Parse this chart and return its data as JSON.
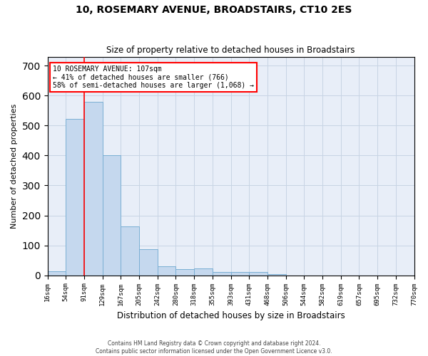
{
  "title": "10, ROSEMARY AVENUE, BROADSTAIRS, CT10 2ES",
  "subtitle": "Size of property relative to detached houses in Broadstairs",
  "xlabel": "Distribution of detached houses by size in Broadstairs",
  "ylabel": "Number of detached properties",
  "bar_color": "#c5d8ee",
  "bar_edge_color": "#7aafd4",
  "bar_values": [
    13,
    522,
    580,
    400,
    163,
    88,
    30,
    20,
    22,
    10,
    12,
    12,
    5,
    0,
    0,
    0,
    0,
    0,
    0,
    0
  ],
  "categories": [
    "16sqm",
    "54sqm",
    "91sqm",
    "129sqm",
    "167sqm",
    "205sqm",
    "242sqm",
    "280sqm",
    "318sqm",
    "355sqm",
    "393sqm",
    "431sqm",
    "468sqm",
    "506sqm",
    "544sqm",
    "582sqm",
    "619sqm",
    "657sqm",
    "695sqm",
    "732sqm",
    "770sqm"
  ],
  "ylim": [
    0,
    730
  ],
  "yticks": [
    0,
    100,
    200,
    300,
    400,
    500,
    600,
    700
  ],
  "red_line_index": 2.0,
  "annotation_text": "10 ROSEMARY AVENUE: 107sqm\n← 41% of detached houses are smaller (766)\n58% of semi-detached houses are larger (1,068) →",
  "annotation_box_color": "white",
  "annotation_edge_color": "red",
  "grid_color": "#c8d4e4",
  "background_color": "#e8eef8",
  "footer_line1": "Contains HM Land Registry data © Crown copyright and database right 2024.",
  "footer_line2": "Contains public sector information licensed under the Open Government Licence v3.0."
}
